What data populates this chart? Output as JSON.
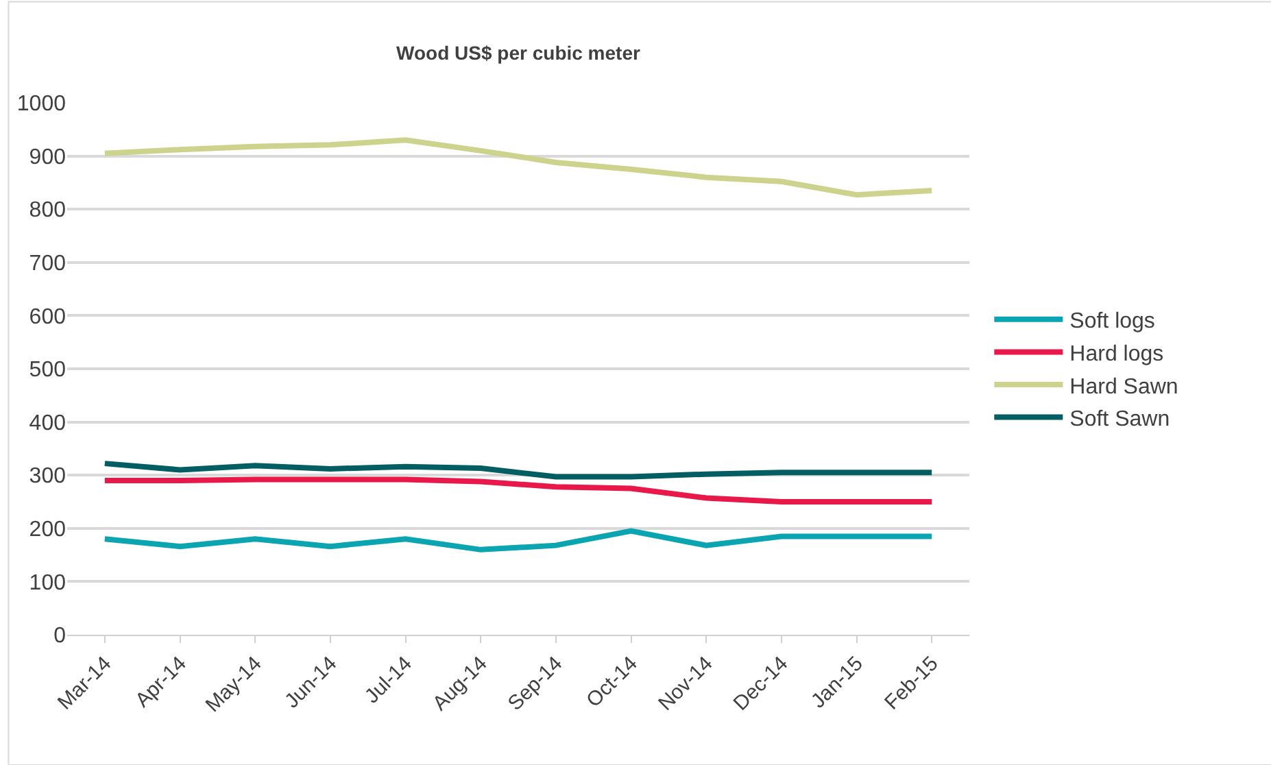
{
  "chart_data": {
    "type": "line",
    "title": "Wood US$ per cubic meter",
    "categories": [
      "Mar-14",
      "Apr-14",
      "May-14",
      "Jun-14",
      "Jul-14",
      "Aug-14",
      "Sep-14",
      "Oct-14",
      "Nov-14",
      "Dec-14",
      "Jan-15",
      "Feb-15"
    ],
    "series": [
      {
        "name": "Soft logs",
        "color": "#0aa5b0",
        "values": [
          180,
          166,
          180,
          166,
          180,
          160,
          168,
          195,
          168,
          185,
          185,
          185
        ]
      },
      {
        "name": "Hard logs",
        "color": "#e8194a",
        "values": [
          290,
          290,
          292,
          292,
          292,
          288,
          278,
          275,
          257,
          250,
          250,
          250
        ]
      },
      {
        "name": "Hard Sawn",
        "color": "#cdd28c",
        "values": [
          905,
          912,
          918,
          921,
          930,
          910,
          888,
          875,
          860,
          852,
          827,
          835
        ]
      },
      {
        "name": "Soft Sawn",
        "color": "#025e63",
        "values": [
          322,
          310,
          318,
          312,
          316,
          313,
          297,
          297,
          302,
          305,
          305,
          305
        ]
      }
    ],
    "ylim": [
      0,
      1000
    ],
    "yticks": [
      0,
      100,
      200,
      300,
      400,
      500,
      600,
      700,
      800,
      900,
      1000
    ],
    "grid": "y",
    "legend": "right",
    "marker": "none",
    "line_style": "solid"
  }
}
